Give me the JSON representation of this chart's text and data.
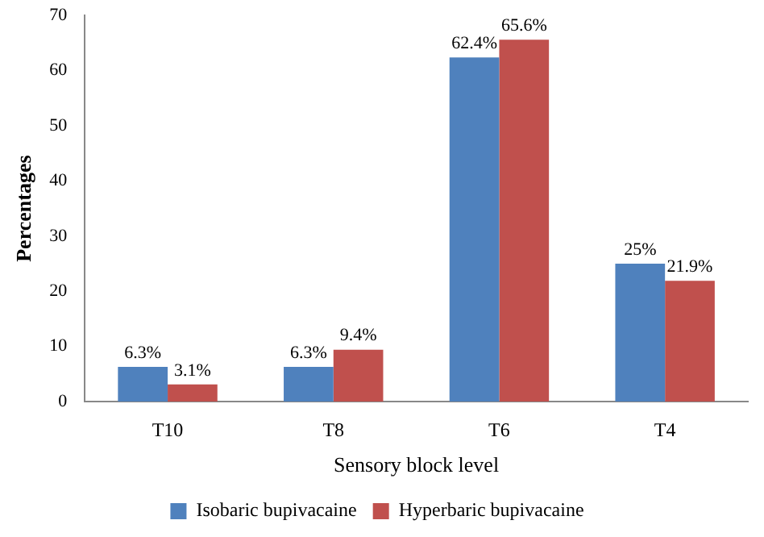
{
  "chart_data": {
    "type": "bar",
    "xlabel": "Sensory block level",
    "ylabel": "Percentages",
    "categories": [
      "T10",
      "T8",
      "T6",
      "T4"
    ],
    "series": [
      {
        "name": "Isobaric bupivacaine",
        "color": "#4f81bd",
        "values": [
          6.3,
          6.3,
          62.4,
          25
        ],
        "value_labels": [
          "6.3%",
          "6.3%",
          "62.4%",
          "25%"
        ]
      },
      {
        "name": "Hyperbaric bupivacaine",
        "color": "#c0504d",
        "values": [
          3.1,
          9.4,
          65.6,
          21.9
        ],
        "value_labels": [
          "3.1%",
          "9.4%",
          "65.6%",
          "21.9%"
        ]
      }
    ],
    "ylim": [
      0,
      70
    ],
    "yticks": [
      0,
      10,
      20,
      30,
      40,
      50,
      60,
      70
    ],
    "grid": false,
    "legend": "bottom"
  }
}
